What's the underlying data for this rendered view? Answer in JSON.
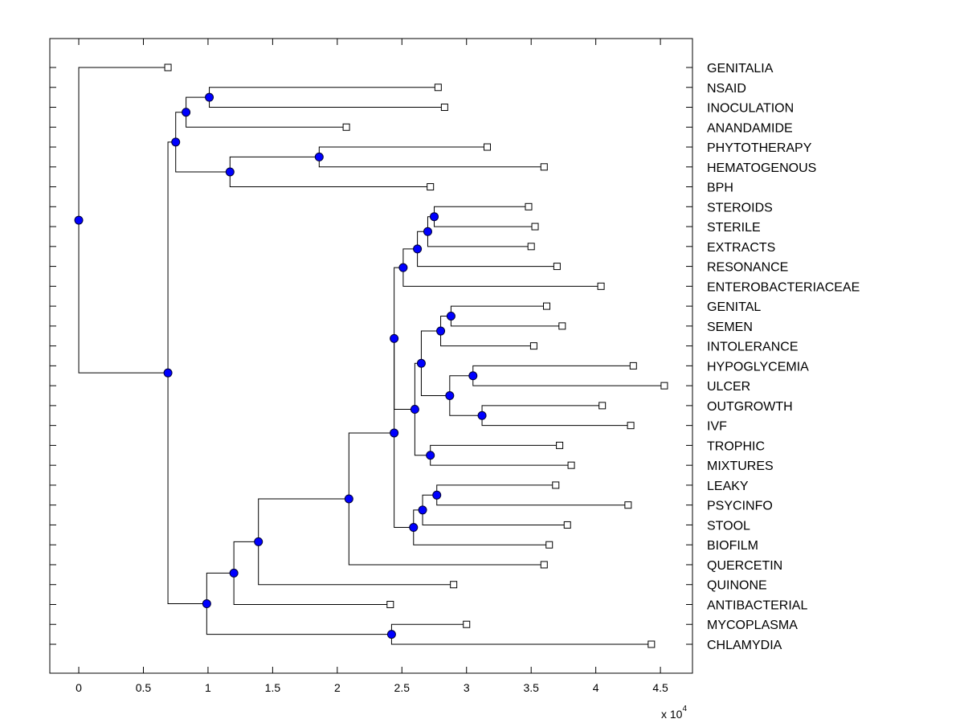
{
  "chart_data": {
    "type": "dendrogram",
    "title": "",
    "xlabel": "",
    "ylabel": "",
    "x_multiplier_label": "x 10",
    "x_multiplier_exponent": "4",
    "xlim": [
      -0.224,
      4.748
    ],
    "x_ticks": [
      0,
      0.5,
      1,
      1.5,
      2,
      2.5,
      3,
      3.5,
      4,
      4.5
    ],
    "x_tick_labels": [
      "0",
      "0.5",
      "1",
      "1.5",
      "2",
      "2.5",
      "3",
      "3.5",
      "4",
      "4.5"
    ],
    "grid": false,
    "colors": {
      "node_fill": "#0000ff",
      "leaf_fill": "#ffffff",
      "line": "#000000"
    },
    "leaves": [
      {
        "name": "GENITALIA",
        "x": 0.69
      },
      {
        "name": "NSAID",
        "x": 2.78
      },
      {
        "name": "INOCULATION",
        "x": 2.83
      },
      {
        "name": "ANANDAMIDE",
        "x": 2.07
      },
      {
        "name": "PHYTOTHERAPY",
        "x": 3.16
      },
      {
        "name": "HEMATOGENOUS",
        "x": 3.6
      },
      {
        "name": "BPH",
        "x": 2.72
      },
      {
        "name": "STEROIDS",
        "x": 3.48
      },
      {
        "name": "STERILE",
        "x": 3.53
      },
      {
        "name": "EXTRACTS",
        "x": 3.5
      },
      {
        "name": "RESONANCE",
        "x": 3.7
      },
      {
        "name": "ENTEROBACTERIACEAE",
        "x": 4.04
      },
      {
        "name": "GENITAL",
        "x": 3.62
      },
      {
        "name": "SEMEN",
        "x": 3.74
      },
      {
        "name": "INTOLERANCE",
        "x": 3.52
      },
      {
        "name": "HYPOGLYCEMIA",
        "x": 4.29
      },
      {
        "name": "ULCER",
        "x": 4.53
      },
      {
        "name": "OUTGROWTH",
        "x": 4.05
      },
      {
        "name": "IVF",
        "x": 4.27
      },
      {
        "name": "TROPHIC",
        "x": 3.72
      },
      {
        "name": "MIXTURES",
        "x": 3.81
      },
      {
        "name": "LEAKY",
        "x": 3.69
      },
      {
        "name": "PSYCINFO",
        "x": 4.25
      },
      {
        "name": "STOOL",
        "x": 3.78
      },
      {
        "name": "BIOFILM",
        "x": 3.64
      },
      {
        "name": "QUERCETIN",
        "x": 3.6
      },
      {
        "name": "QUINONE",
        "x": 2.9
      },
      {
        "name": "ANTIBACTERIAL",
        "x": 2.41
      },
      {
        "name": "MYCOPLASMA",
        "x": 3.0
      },
      {
        "name": "CHLAMYDIA",
        "x": 4.43
      }
    ],
    "nodes": [
      {
        "id": "n_nsaid_inoc",
        "x": 1.01,
        "children": [
          "NSAID",
          "INOCULATION"
        ]
      },
      {
        "id": "n_anand",
        "x": 0.83,
        "children": [
          "n_nsaid_inoc",
          "ANANDAMIDE"
        ]
      },
      {
        "id": "n_phyto_hema",
        "x": 1.86,
        "children": [
          "PHYTOTHERAPY",
          "HEMATOGENOUS"
        ]
      },
      {
        "id": "n_bph",
        "x": 1.17,
        "children": [
          "n_phyto_hema",
          "BPH"
        ]
      },
      {
        "id": "n_top",
        "x": 0.75,
        "children": [
          "n_anand",
          "n_bph"
        ]
      },
      {
        "id": "n_ster",
        "x": 2.75,
        "children": [
          "STEROIDS",
          "STERILE"
        ]
      },
      {
        "id": "n_extr",
        "x": 2.7,
        "children": [
          "n_ster",
          "EXTRACTS"
        ]
      },
      {
        "id": "n_reso",
        "x": 2.62,
        "children": [
          "n_extr",
          "RESONANCE"
        ]
      },
      {
        "id": "n_entero",
        "x": 2.51,
        "children": [
          "n_reso",
          "ENTEROBACTERIACEAE"
        ]
      },
      {
        "id": "n_gen_sem",
        "x": 2.88,
        "children": [
          "GENITAL",
          "SEMEN"
        ]
      },
      {
        "id": "n_intol",
        "x": 2.8,
        "children": [
          "n_gen_sem",
          "INTOLERANCE"
        ]
      },
      {
        "id": "n_hypo_ulc",
        "x": 3.05,
        "children": [
          "HYPOGLYCEMIA",
          "ULCER"
        ]
      },
      {
        "id": "n_out_ivf",
        "x": 3.12,
        "children": [
          "OUTGROWTH",
          "IVF"
        ]
      },
      {
        "id": "n_hypo_out",
        "x": 2.87,
        "children": [
          "n_hypo_ulc",
          "n_out_ivf"
        ]
      },
      {
        "id": "n_intol_hypo",
        "x": 2.65,
        "children": [
          "n_intol",
          "n_hypo_out"
        ]
      },
      {
        "id": "n_troph_mix",
        "x": 2.72,
        "children": [
          "TROPHIC",
          "MIXTURES"
        ]
      },
      {
        "id": "n_mid",
        "x": 2.6,
        "children": [
          "n_intol_hypo",
          "n_troph_mix"
        ]
      },
      {
        "id": "n_entero_mid",
        "x": 2.44,
        "children": [
          "n_entero",
          "n_mid"
        ]
      },
      {
        "id": "n_leaky_psy",
        "x": 2.77,
        "children": [
          "LEAKY",
          "PSYCINFO"
        ]
      },
      {
        "id": "n_stool",
        "x": 2.66,
        "children": [
          "n_leaky_psy",
          "STOOL"
        ]
      },
      {
        "id": "n_biofilm",
        "x": 2.59,
        "children": [
          "n_stool",
          "BIOFILM"
        ]
      },
      {
        "id": "n_big",
        "x": 2.44,
        "children": [
          "n_entero_mid",
          "n_biofilm"
        ]
      },
      {
        "id": "n_querc",
        "x": 2.09,
        "children": [
          "n_big",
          "QUERCETIN"
        ]
      },
      {
        "id": "n_quin",
        "x": 1.39,
        "children": [
          "n_querc",
          "QUINONE"
        ]
      },
      {
        "id": "n_antib",
        "x": 1.2,
        "children": [
          "n_quin",
          "ANTIBACTERIAL"
        ]
      },
      {
        "id": "n_myco_chla",
        "x": 2.42,
        "children": [
          "MYCOPLASMA",
          "CHLAMYDIA"
        ]
      },
      {
        "id": "n_low",
        "x": 0.99,
        "children": [
          "n_antib",
          "n_myco_chla"
        ]
      },
      {
        "id": "n_bottom",
        "x": 0.69,
        "children": [
          "n_top",
          "n_low"
        ]
      },
      {
        "id": "root",
        "x": 0.0,
        "children": [
          "GENITALIA",
          "n_bottom"
        ]
      }
    ]
  }
}
